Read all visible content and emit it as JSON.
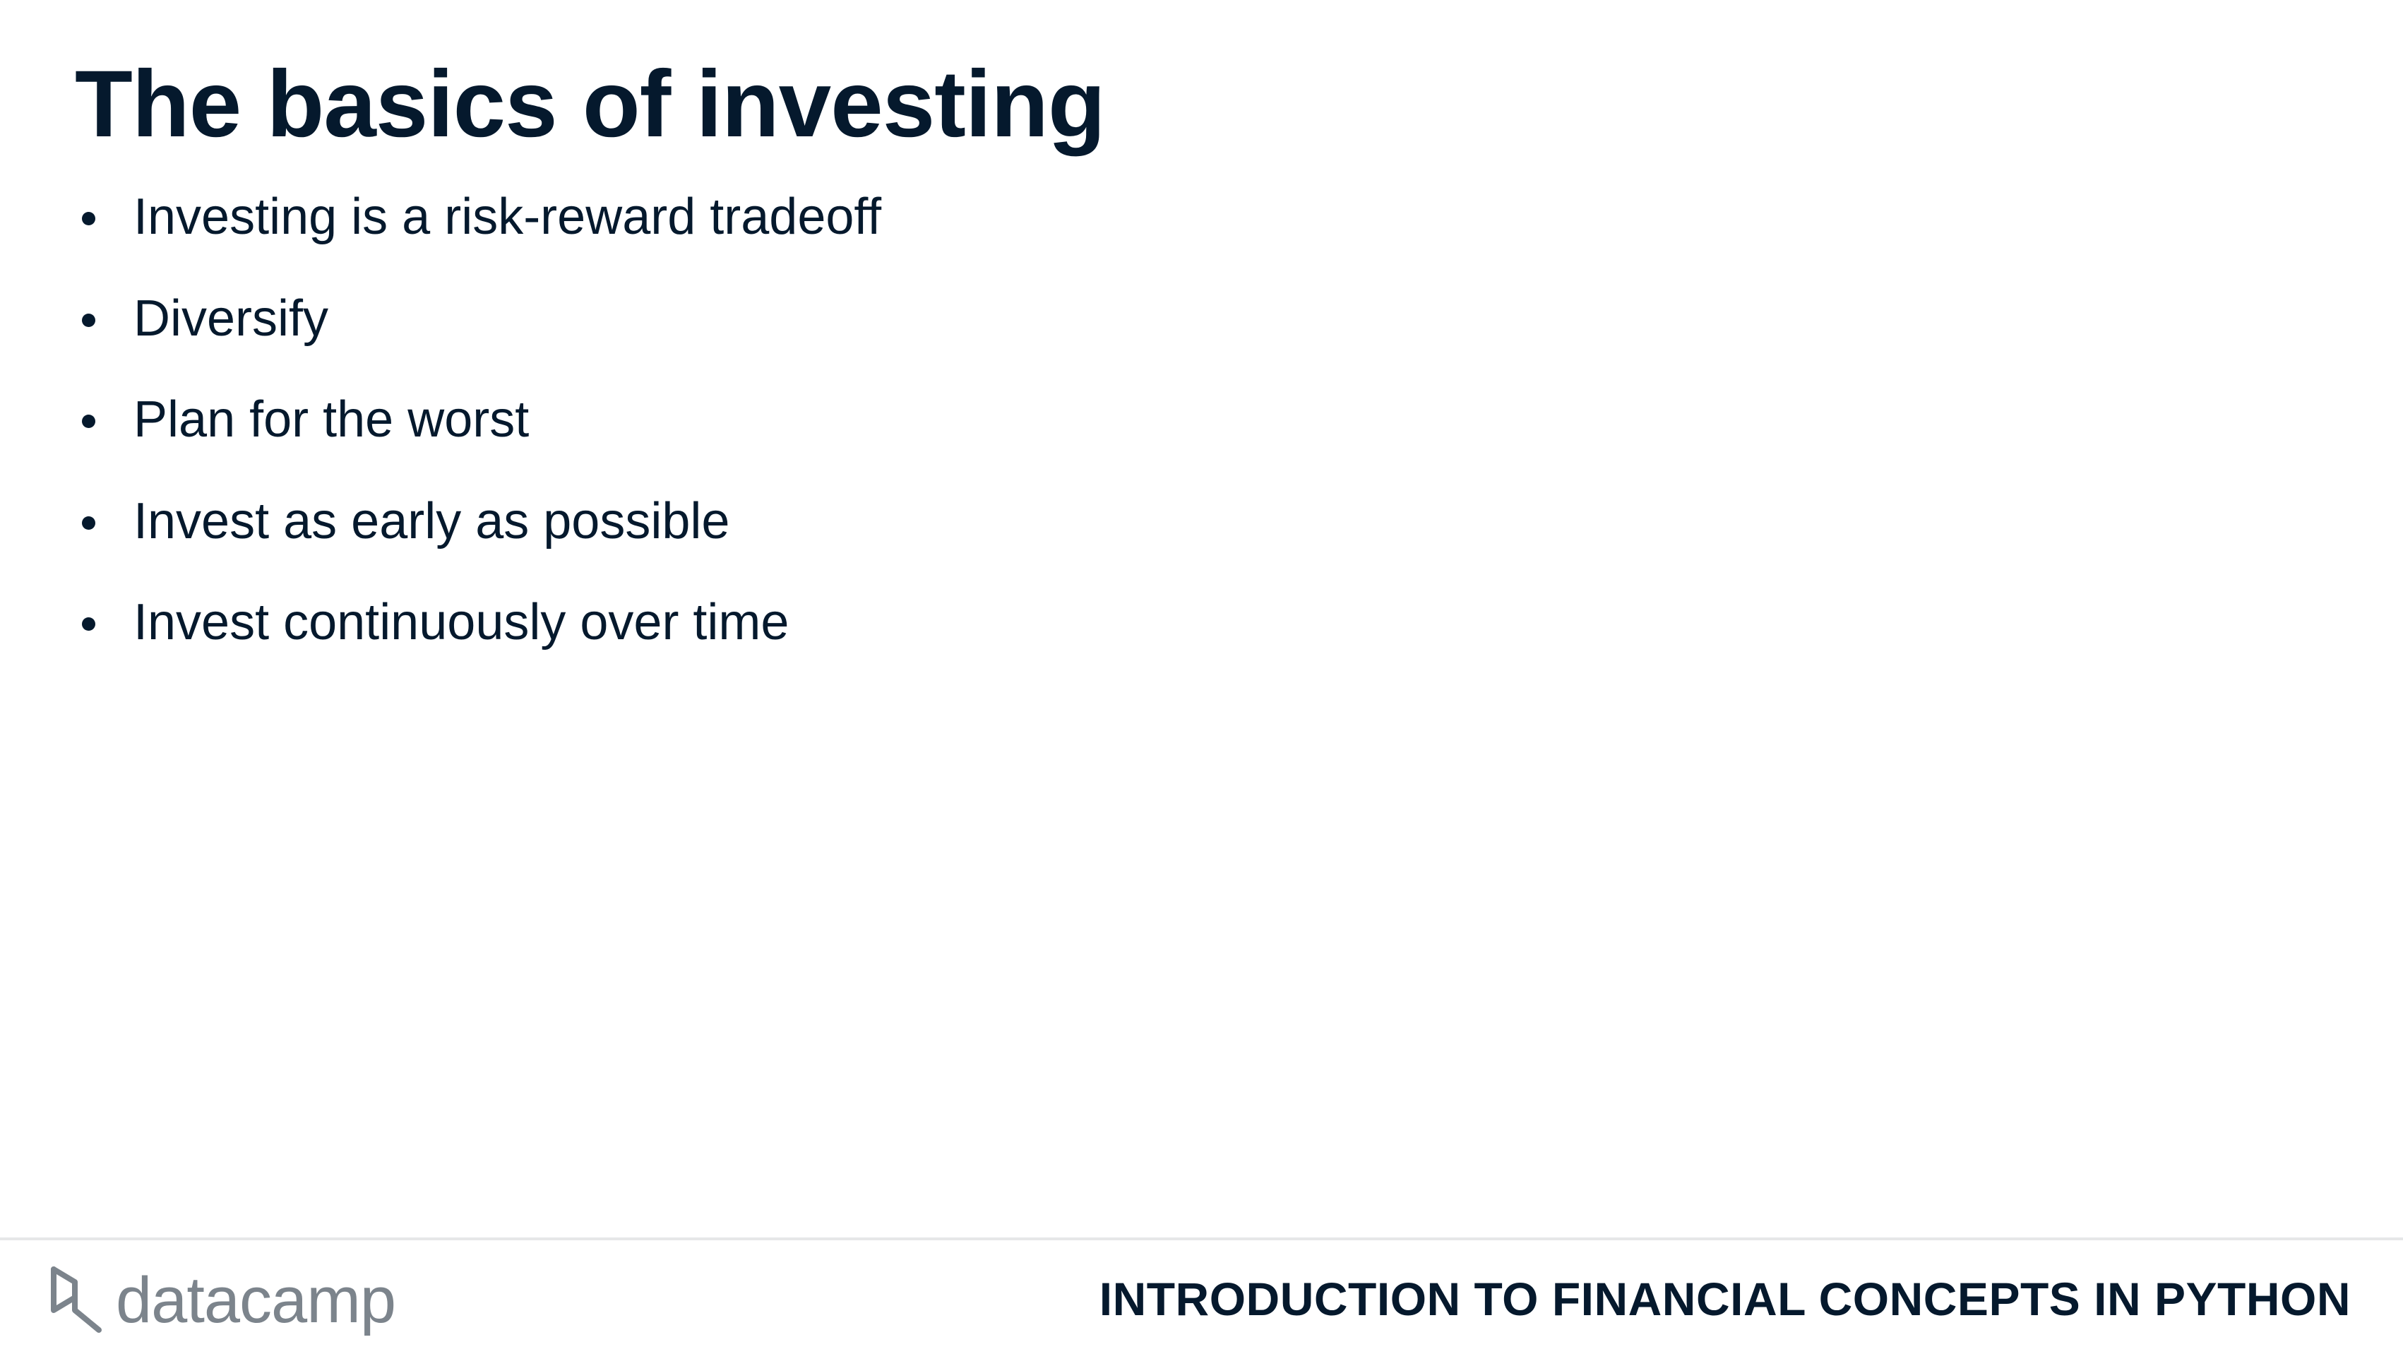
{
  "slide": {
    "title": "The basics of investing",
    "bullets": [
      "Investing is a risk-reward tradeoff",
      "Diversify",
      "Plan for the worst",
      "Invest as early as possible",
      "Invest continuously over time"
    ]
  },
  "footer": {
    "logo_text": "datacamp",
    "logo_icon": "datacamp-logo-icon",
    "course_title": "INTRODUCTION TO FINANCIAL CONCEPTS IN PYTHON"
  },
  "colors": {
    "text": "#05192d",
    "logo_gray": "#7c848c",
    "divider": "#e6e7e8"
  }
}
